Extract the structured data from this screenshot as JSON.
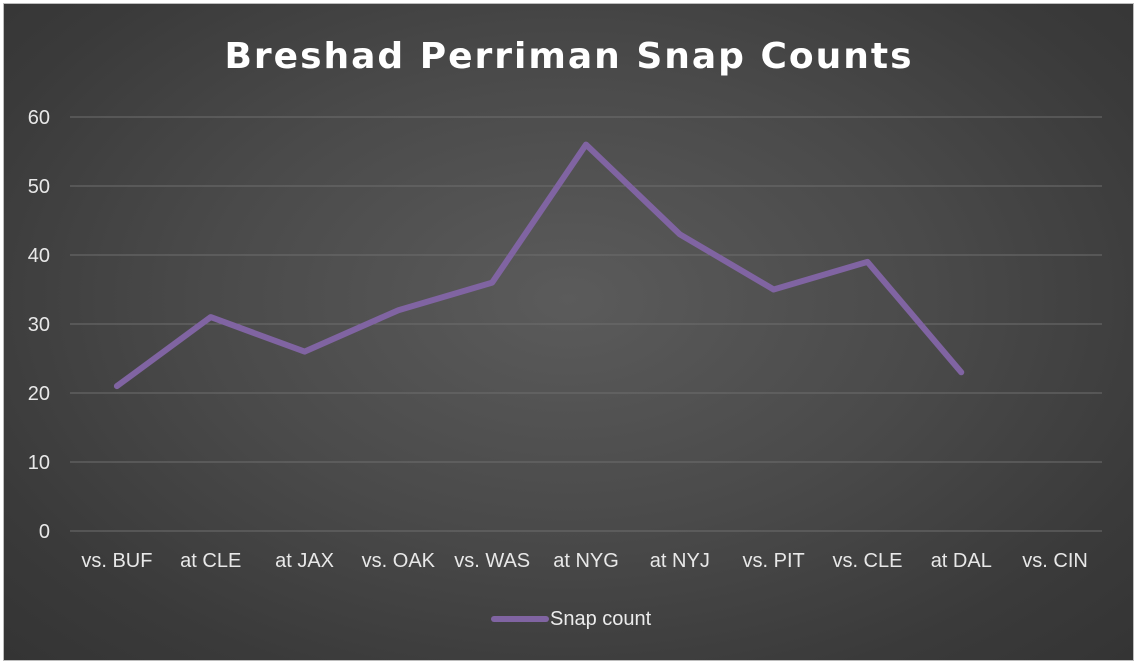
{
  "chart_data": {
    "type": "line",
    "title": "Breshad Perriman Snap Counts",
    "xlabel": "",
    "ylabel": "",
    "categories": [
      "vs. BUF",
      "at CLE",
      "at JAX",
      "vs. OAK",
      "vs. WAS",
      "at NYG",
      "at NYJ",
      "vs. PIT",
      "vs. CLE",
      "at DAL",
      "vs. CIN"
    ],
    "series": [
      {
        "name": "Snap count",
        "values": [
          21,
          31,
          26,
          32,
          36,
          56,
          43,
          35,
          39,
          23,
          null
        ],
        "color": "#8064a2"
      }
    ],
    "ylim": [
      0,
      60
    ],
    "yticks": [
      0,
      10,
      20,
      30,
      40,
      50,
      60
    ],
    "grid": true,
    "legend": "bottom"
  }
}
